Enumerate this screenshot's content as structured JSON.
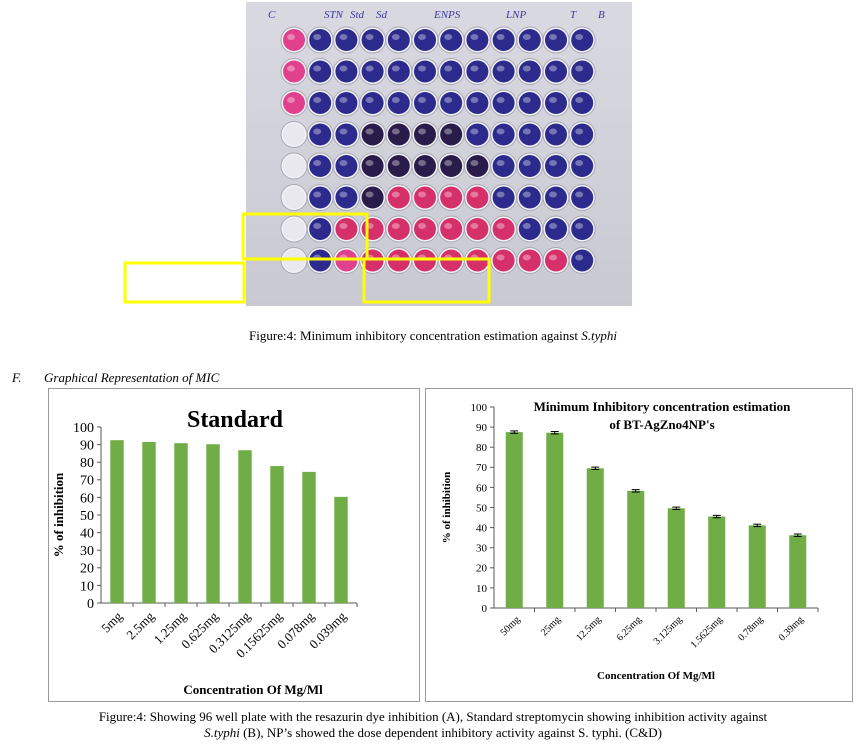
{
  "figure_top": {
    "caption_prefix": "Figure:4: Minimum inhibitory concentration estimation against ",
    "caption_species": "S.typhi"
  },
  "plate": {
    "labels": [
      "C",
      "STN",
      "Std",
      "Sd",
      "ENPS",
      "LNP",
      "T",
      "B"
    ],
    "well_colors": {
      "blue": "#2c2a8c",
      "dark": "#2a1c4a",
      "pink": "#d6306a",
      "magenta": "#e0408c",
      "empty": "#e8e8ee"
    },
    "highlight_color": "#ffff00"
  },
  "section": {
    "letter": "F.",
    "title": "Graphical Representation of MIC"
  },
  "chart_data": [
    {
      "type": "bar",
      "title": "Standard",
      "categories": [
        "5mg",
        "2.5mg",
        "1.25mg",
        "0.625mg",
        "0.3125mg",
        "0.15625mg",
        "0.078mg",
        "0.039mg"
      ],
      "values": [
        92.5,
        91.5,
        90.8,
        90.2,
        86.8,
        77.8,
        74.5,
        60.3
      ],
      "xlabel": "Concentration Of Mg/Ml",
      "ylabel": "% of inhibition",
      "ylim": [
        0,
        100
      ],
      "yticks": [
        0,
        10,
        20,
        30,
        40,
        50,
        60,
        70,
        80,
        90,
        100
      ],
      "bar_color": "#70ad47",
      "error_bars": false
    },
    {
      "type": "bar",
      "title": "Minimum Inhibitory concentration estimation",
      "title_line2": "of BT-AgZno4NP's",
      "categories": [
        "50mg",
        "25mg",
        "12.5mg",
        "6.25mg",
        "3.125mg",
        "1.5625mg",
        "0.78mg",
        "0.39mg"
      ],
      "values": [
        87.5,
        87.2,
        69.5,
        58.3,
        49.6,
        45.5,
        41.1,
        36.2
      ],
      "xlabel": "Concentration Of Mg/Ml",
      "ylabel": "% of inhibition",
      "ylim": [
        0,
        100
      ],
      "yticks": [
        0,
        10,
        20,
        30,
        40,
        50,
        60,
        70,
        80,
        90,
        100
      ],
      "bar_color": "#70ad47",
      "error_bars": true
    }
  ],
  "figure_bottom": {
    "line1": "Figure:4: Showing 96 well plate with the resazurin dye inhibition (A), Standard streptomycin showing inhibition activity against",
    "line2_species": "S.typhi",
    "line2_rest": " (B), NP’s showed the dose dependent inhibitory activity against S. typhi. (C&D)"
  }
}
